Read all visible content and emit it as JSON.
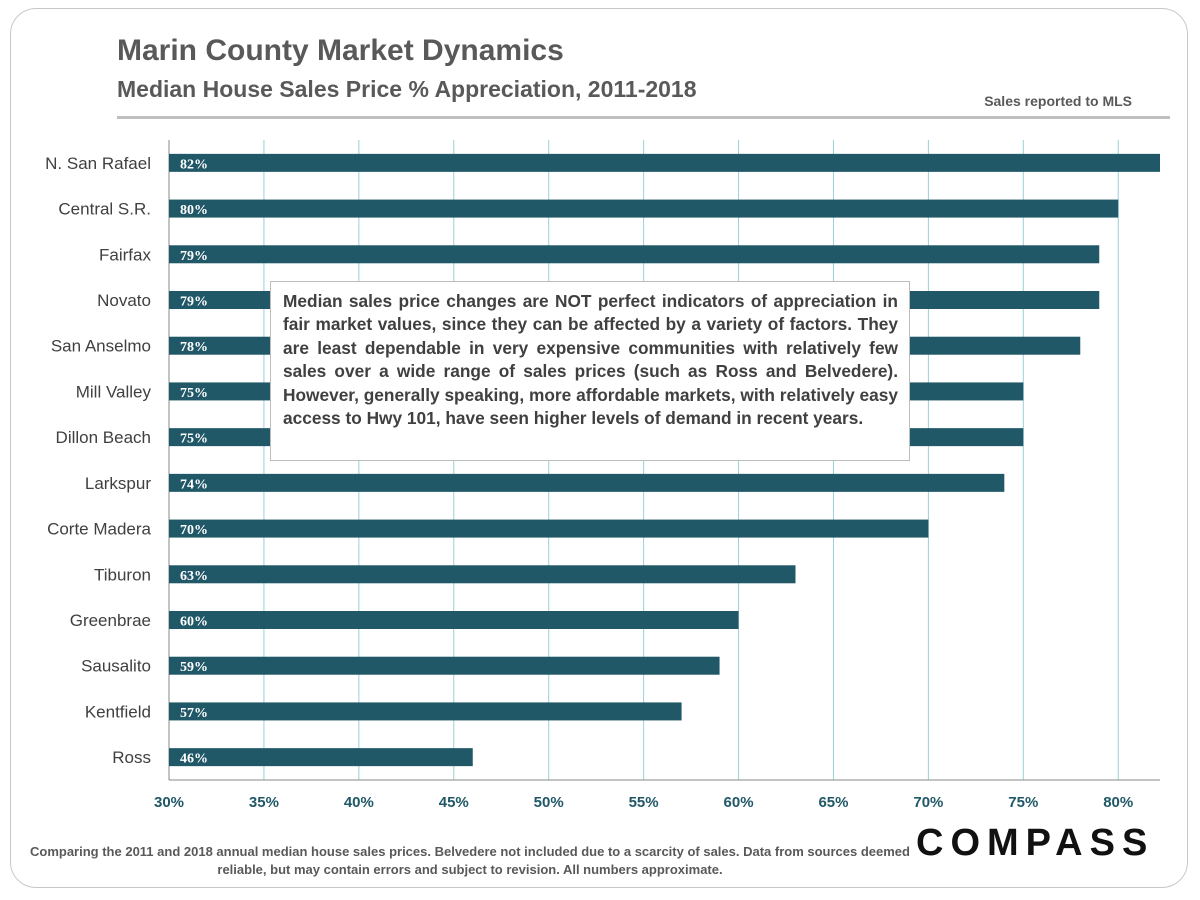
{
  "header": {
    "title": "Marin County Market Dynamics",
    "subtitle": "Median House Sales Price % Appreciation, 2011-2018",
    "source_note": "Sales reported to MLS"
  },
  "callout": {
    "text": "Median sales price changes are NOT perfect indicators of appreciation in fair market values, since they can be affected by a variety of factors. They are least dependable in very expensive communities with relatively few sales over a wide range of sales prices (such as Ross and Belvedere). However, generally speaking, more affordable markets, with relatively easy access to Hwy 101, have seen higher levels of demand in recent years."
  },
  "footer": {
    "note": "Comparing the 2011 and 2018 annual median house sales prices. Belvedere not included due to a scarcity of sales. Data from sources deemed reliable, but may contain errors and subject to revision. All numbers approximate.",
    "logo": "COMPASS"
  },
  "colors": {
    "bar": "#215868",
    "bar_label": "#ffffff",
    "tick_label": "#215868",
    "category_label": "#404040",
    "grid": "#9ccfd8"
  },
  "chart_data": {
    "type": "bar",
    "orientation": "horizontal",
    "categories": [
      "N. San Rafael",
      "Central S.R.",
      "Fairfax",
      "Novato",
      "San Anselmo",
      "Mill Valley",
      "Dillon Beach",
      "Larkspur",
      "Corte Madera",
      "Tiburon",
      "Greenbrae",
      "Sausalito",
      "Kentfield",
      "Ross"
    ],
    "values": [
      82.2,
      80,
      79,
      79,
      78,
      75,
      75,
      74,
      70,
      63,
      60,
      59,
      57,
      46
    ],
    "data_labels": [
      "82%",
      "80%",
      "79%",
      "79%",
      "78%",
      "75%",
      "75%",
      "74%",
      "70%",
      "63%",
      "60%",
      "59%",
      "57%",
      "46%"
    ],
    "xlim": [
      30,
      82.2
    ],
    "xticks": [
      30,
      35,
      40,
      45,
      50,
      55,
      60,
      65,
      70,
      75,
      80
    ],
    "xtick_labels": [
      "30%",
      "35%",
      "40%",
      "45%",
      "50%",
      "55%",
      "60%",
      "65%",
      "70%",
      "75%",
      "80%"
    ],
    "grid": true,
    "legend": false
  }
}
